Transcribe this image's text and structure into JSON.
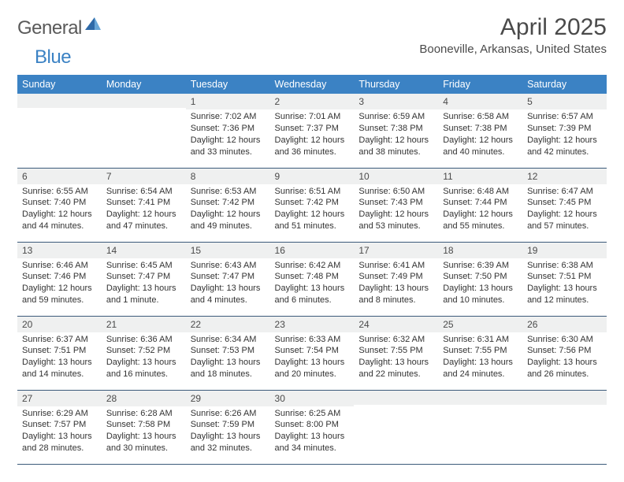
{
  "logo": {
    "part1": "General",
    "part2": "Blue"
  },
  "title": "April 2025",
  "location": "Booneville, Arkansas, United States",
  "colors": {
    "header_bg": "#3b82c4",
    "header_text": "#ffffff",
    "daynum_bg": "#eff0f0",
    "border": "#3b5a7a",
    "text": "#333333",
    "title_text": "#4a4a4a"
  },
  "dayNames": [
    "Sunday",
    "Monday",
    "Tuesday",
    "Wednesday",
    "Thursday",
    "Friday",
    "Saturday"
  ],
  "weeks": [
    [
      {
        "n": "",
        "sr": "",
        "ss": "",
        "dl": ""
      },
      {
        "n": "",
        "sr": "",
        "ss": "",
        "dl": ""
      },
      {
        "n": "1",
        "sr": "Sunrise: 7:02 AM",
        "ss": "Sunset: 7:36 PM",
        "dl": "Daylight: 12 hours and 33 minutes."
      },
      {
        "n": "2",
        "sr": "Sunrise: 7:01 AM",
        "ss": "Sunset: 7:37 PM",
        "dl": "Daylight: 12 hours and 36 minutes."
      },
      {
        "n": "3",
        "sr": "Sunrise: 6:59 AM",
        "ss": "Sunset: 7:38 PM",
        "dl": "Daylight: 12 hours and 38 minutes."
      },
      {
        "n": "4",
        "sr": "Sunrise: 6:58 AM",
        "ss": "Sunset: 7:38 PM",
        "dl": "Daylight: 12 hours and 40 minutes."
      },
      {
        "n": "5",
        "sr": "Sunrise: 6:57 AM",
        "ss": "Sunset: 7:39 PM",
        "dl": "Daylight: 12 hours and 42 minutes."
      }
    ],
    [
      {
        "n": "6",
        "sr": "Sunrise: 6:55 AM",
        "ss": "Sunset: 7:40 PM",
        "dl": "Daylight: 12 hours and 44 minutes."
      },
      {
        "n": "7",
        "sr": "Sunrise: 6:54 AM",
        "ss": "Sunset: 7:41 PM",
        "dl": "Daylight: 12 hours and 47 minutes."
      },
      {
        "n": "8",
        "sr": "Sunrise: 6:53 AM",
        "ss": "Sunset: 7:42 PM",
        "dl": "Daylight: 12 hours and 49 minutes."
      },
      {
        "n": "9",
        "sr": "Sunrise: 6:51 AM",
        "ss": "Sunset: 7:42 PM",
        "dl": "Daylight: 12 hours and 51 minutes."
      },
      {
        "n": "10",
        "sr": "Sunrise: 6:50 AM",
        "ss": "Sunset: 7:43 PM",
        "dl": "Daylight: 12 hours and 53 minutes."
      },
      {
        "n": "11",
        "sr": "Sunrise: 6:48 AM",
        "ss": "Sunset: 7:44 PM",
        "dl": "Daylight: 12 hours and 55 minutes."
      },
      {
        "n": "12",
        "sr": "Sunrise: 6:47 AM",
        "ss": "Sunset: 7:45 PM",
        "dl": "Daylight: 12 hours and 57 minutes."
      }
    ],
    [
      {
        "n": "13",
        "sr": "Sunrise: 6:46 AM",
        "ss": "Sunset: 7:46 PM",
        "dl": "Daylight: 12 hours and 59 minutes."
      },
      {
        "n": "14",
        "sr": "Sunrise: 6:45 AM",
        "ss": "Sunset: 7:47 PM",
        "dl": "Daylight: 13 hours and 1 minute."
      },
      {
        "n": "15",
        "sr": "Sunrise: 6:43 AM",
        "ss": "Sunset: 7:47 PM",
        "dl": "Daylight: 13 hours and 4 minutes."
      },
      {
        "n": "16",
        "sr": "Sunrise: 6:42 AM",
        "ss": "Sunset: 7:48 PM",
        "dl": "Daylight: 13 hours and 6 minutes."
      },
      {
        "n": "17",
        "sr": "Sunrise: 6:41 AM",
        "ss": "Sunset: 7:49 PM",
        "dl": "Daylight: 13 hours and 8 minutes."
      },
      {
        "n": "18",
        "sr": "Sunrise: 6:39 AM",
        "ss": "Sunset: 7:50 PM",
        "dl": "Daylight: 13 hours and 10 minutes."
      },
      {
        "n": "19",
        "sr": "Sunrise: 6:38 AM",
        "ss": "Sunset: 7:51 PM",
        "dl": "Daylight: 13 hours and 12 minutes."
      }
    ],
    [
      {
        "n": "20",
        "sr": "Sunrise: 6:37 AM",
        "ss": "Sunset: 7:51 PM",
        "dl": "Daylight: 13 hours and 14 minutes."
      },
      {
        "n": "21",
        "sr": "Sunrise: 6:36 AM",
        "ss": "Sunset: 7:52 PM",
        "dl": "Daylight: 13 hours and 16 minutes."
      },
      {
        "n": "22",
        "sr": "Sunrise: 6:34 AM",
        "ss": "Sunset: 7:53 PM",
        "dl": "Daylight: 13 hours and 18 minutes."
      },
      {
        "n": "23",
        "sr": "Sunrise: 6:33 AM",
        "ss": "Sunset: 7:54 PM",
        "dl": "Daylight: 13 hours and 20 minutes."
      },
      {
        "n": "24",
        "sr": "Sunrise: 6:32 AM",
        "ss": "Sunset: 7:55 PM",
        "dl": "Daylight: 13 hours and 22 minutes."
      },
      {
        "n": "25",
        "sr": "Sunrise: 6:31 AM",
        "ss": "Sunset: 7:55 PM",
        "dl": "Daylight: 13 hours and 24 minutes."
      },
      {
        "n": "26",
        "sr": "Sunrise: 6:30 AM",
        "ss": "Sunset: 7:56 PM",
        "dl": "Daylight: 13 hours and 26 minutes."
      }
    ],
    [
      {
        "n": "27",
        "sr": "Sunrise: 6:29 AM",
        "ss": "Sunset: 7:57 PM",
        "dl": "Daylight: 13 hours and 28 minutes."
      },
      {
        "n": "28",
        "sr": "Sunrise: 6:28 AM",
        "ss": "Sunset: 7:58 PM",
        "dl": "Daylight: 13 hours and 30 minutes."
      },
      {
        "n": "29",
        "sr": "Sunrise: 6:26 AM",
        "ss": "Sunset: 7:59 PM",
        "dl": "Daylight: 13 hours and 32 minutes."
      },
      {
        "n": "30",
        "sr": "Sunrise: 6:25 AM",
        "ss": "Sunset: 8:00 PM",
        "dl": "Daylight: 13 hours and 34 minutes."
      },
      {
        "n": "",
        "sr": "",
        "ss": "",
        "dl": ""
      },
      {
        "n": "",
        "sr": "",
        "ss": "",
        "dl": ""
      },
      {
        "n": "",
        "sr": "",
        "ss": "",
        "dl": ""
      }
    ]
  ]
}
